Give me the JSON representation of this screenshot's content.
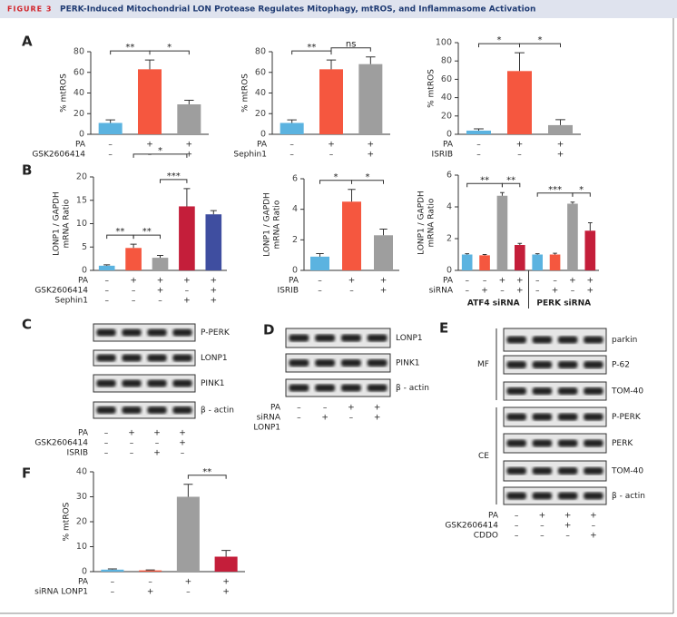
{
  "header": {
    "label": "FIGURE 3",
    "title": "PERK-Induced Mitochondrial LON Protease Regulates Mitophagy, mtROS, and Inflammasome Activation"
  },
  "panel_labels": [
    "A",
    "B",
    "C",
    "D",
    "E",
    "F"
  ],
  "chart_data": [
    {
      "type": "bar",
      "y_label": [
        "% mtROS"
      ],
      "values": [
        11,
        63,
        29
      ],
      "errors": [
        3,
        9,
        4
      ],
      "colors": [
        "#5bb3e0",
        "#f5573f",
        "#9e9e9e"
      ],
      "ylim": [
        0,
        80
      ],
      "yticks": [
        0,
        20,
        40,
        60,
        80
      ],
      "conditions": [
        {
          "label": "PA",
          "signs": [
            "–",
            "+",
            "+"
          ]
        },
        {
          "label": "GSK2606414",
          "signs": [
            "–",
            "–",
            "+"
          ]
        }
      ],
      "brackets": [
        {
          "label": "**",
          "pair": [
            0,
            1
          ]
        },
        {
          "label": "*",
          "pair": [
            1,
            2
          ]
        }
      ]
    },
    {
      "type": "bar",
      "y_label": [
        "% mtROS"
      ],
      "values": [
        11,
        63,
        68
      ],
      "errors": [
        3,
        9,
        7
      ],
      "colors": [
        "#5bb3e0",
        "#f5573f",
        "#9e9e9e"
      ],
      "ylim": [
        0,
        80
      ],
      "yticks": [
        0,
        20,
        40,
        60,
        80
      ],
      "conditions": [
        {
          "label": "PA",
          "signs": [
            "–",
            "+",
            "+"
          ]
        },
        {
          "label": "Sephin1",
          "signs": [
            "–",
            "–",
            "+"
          ]
        }
      ],
      "brackets": [
        {
          "label": "**",
          "pair": [
            0,
            1
          ]
        },
        {
          "label": "ns",
          "pair": [
            1,
            2
          ]
        }
      ]
    },
    {
      "type": "bar",
      "y_label": [
        "% mtROS"
      ],
      "values": [
        4,
        69,
        10
      ],
      "errors": [
        2,
        20,
        6
      ],
      "colors": [
        "#5bb3e0",
        "#f5573f",
        "#9e9e9e"
      ],
      "ylim": [
        0,
        100
      ],
      "yticks": [
        0,
        20,
        40,
        60,
        80,
        100
      ],
      "conditions": [
        {
          "label": "PA",
          "signs": [
            "–",
            "+",
            "+"
          ]
        },
        {
          "label": "ISRIB",
          "signs": [
            "–",
            "–",
            "+"
          ]
        }
      ],
      "brackets": [
        {
          "label": "*",
          "pair": [
            0,
            1
          ]
        },
        {
          "label": "*",
          "pair": [
            1,
            2
          ]
        }
      ]
    },
    {
      "type": "bar",
      "y_label": [
        "LONP1 / GAPDH",
        "mRNA Ratio"
      ],
      "values": [
        1,
        4.8,
        2.7,
        13.7,
        12
      ],
      "errors": [
        0.2,
        0.8,
        0.5,
        3.8,
        0.8
      ],
      "colors": [
        "#5bb3e0",
        "#f5573f",
        "#9e9e9e",
        "#c41e3a",
        "#3f4ea0"
      ],
      "ylim": [
        0,
        20
      ],
      "yticks": [
        0,
        5,
        10,
        15,
        20
      ],
      "conditions": [
        {
          "label": "PA",
          "signs": [
            "–",
            "+",
            "+",
            "+",
            "+"
          ]
        },
        {
          "label": "GSK2606414",
          "signs": [
            "–",
            "–",
            "+",
            "–",
            "+"
          ]
        },
        {
          "label": "Sephin1",
          "signs": [
            "–",
            "–",
            "–",
            "+",
            "+"
          ]
        }
      ],
      "brackets": [
        {
          "label": "**",
          "pair": [
            0,
            1
          ]
        },
        {
          "label": "**",
          "pair": [
            1,
            2
          ]
        },
        {
          "label": "***",
          "pair": [
            2,
            3
          ]
        },
        {
          "label": "*",
          "pair": [
            1,
            3
          ]
        }
      ]
    },
    {
      "type": "bar",
      "y_label": [
        "LONP1 / GAPDH",
        "mRNA Ratio"
      ],
      "values": [
        0.9,
        4.5,
        2.3
      ],
      "errors": [
        0.2,
        0.8,
        0.4
      ],
      "colors": [
        "#5bb3e0",
        "#f5573f",
        "#9e9e9e"
      ],
      "ylim": [
        0,
        6
      ],
      "yticks": [
        0,
        2,
        4,
        6
      ],
      "conditions": [
        {
          "label": "PA",
          "signs": [
            "–",
            "+",
            "+"
          ]
        },
        {
          "label": "ISRIB",
          "signs": [
            "–",
            "–",
            "+"
          ]
        }
      ],
      "brackets": [
        {
          "label": "*",
          "pair": [
            0,
            1
          ]
        },
        {
          "label": "*",
          "pair": [
            1,
            2
          ]
        }
      ]
    },
    {
      "type": "bar",
      "y_label": [
        "LONP1 / GAPDH",
        "mRNA Ratio"
      ],
      "values": [
        1,
        0.95,
        4.7,
        1.6,
        1,
        1,
        4.2,
        2.5
      ],
      "errors": [
        0.05,
        0.05,
        0.2,
        0.1,
        0.05,
        0.08,
        0.1,
        0.5
      ],
      "colors": [
        "#5bb3e0",
        "#f5573f",
        "#9e9e9e",
        "#c41e3a",
        "#5bb3e0",
        "#f5573f",
        "#9e9e9e",
        "#c41e3a"
      ],
      "ylim": [
        0,
        6
      ],
      "yticks": [
        0,
        2,
        4,
        6
      ],
      "conditions": [
        {
          "label": "PA",
          "signs": [
            "–",
            "–",
            "+",
            "+",
            "–",
            "–",
            "+",
            "+"
          ]
        },
        {
          "label": "siRNA",
          "signs": [
            "–",
            "+",
            "–",
            "+",
            "–",
            "+",
            "–",
            "+"
          ]
        }
      ],
      "groups": [
        {
          "label": "ATF4 siRNA",
          "pair": [
            0,
            3
          ]
        },
        {
          "label": "PERK siRNA",
          "pair": [
            4,
            7
          ]
        }
      ],
      "brackets": [
        {
          "label": "**",
          "pair": [
            0,
            2
          ]
        },
        {
          "label": "**",
          "pair": [
            2,
            3
          ]
        },
        {
          "label": "***",
          "pair": [
            4,
            6
          ]
        },
        {
          "label": "*",
          "pair": [
            6,
            7
          ]
        }
      ]
    },
    {
      "type": "bar",
      "y_label": [
        "% mtROS"
      ],
      "values": [
        0.8,
        0.5,
        30,
        6
      ],
      "errors": [
        0.3,
        0.2,
        5,
        2.5
      ],
      "colors": [
        "#5bb3e0",
        "#f5573f",
        "#9e9e9e",
        "#c41e3a"
      ],
      "ylim": [
        0,
        40
      ],
      "yticks": [
        0,
        10,
        20,
        30,
        40
      ],
      "conditions": [
        {
          "label": "PA",
          "signs": [
            "–",
            "–",
            "+",
            "+"
          ]
        },
        {
          "label": "siRNA LONP1",
          "signs": [
            "–",
            "+",
            "–",
            "+"
          ]
        }
      ],
      "brackets": [
        {
          "label": "**",
          "pair": [
            2,
            3
          ]
        }
      ]
    }
  ],
  "blots": [
    {
      "sections": [
        {
          "rows": [
            "P-PERK",
            "LONP1",
            "PINK1",
            "β - actin"
          ]
        }
      ],
      "conditions": [
        {
          "label": "PA",
          "signs": [
            "–",
            "+",
            "+",
            "+"
          ]
        },
        {
          "label": "GSK2606414",
          "signs": [
            "–",
            "–",
            "–",
            "+"
          ]
        },
        {
          "label": "ISRIB",
          "signs": [
            "–",
            "–",
            "+",
            "–"
          ]
        }
      ]
    },
    {
      "sections": [
        {
          "rows": [
            "LONP1",
            "PINK1",
            "β - actin"
          ]
        }
      ],
      "conditions": [
        {
          "label": "PA",
          "signs": [
            "–",
            "–",
            "+",
            "+"
          ]
        },
        {
          "label": "siRNA",
          "signs": [
            "–",
            "+",
            "–",
            "+"
          ]
        },
        {
          "label": "LONP1",
          "signs": []
        }
      ]
    },
    {
      "sections": [
        {
          "label": "MF",
          "rows": [
            "parkin",
            "P-62",
            "TOM-40"
          ]
        },
        {
          "label": "CE",
          "rows": [
            "P-PERK",
            "PERK",
            "TOM-40",
            "β - actin"
          ]
        }
      ],
      "conditions": [
        {
          "label": "PA",
          "signs": [
            "–",
            "+",
            "+",
            "+"
          ]
        },
        {
          "label": "GSK2606414",
          "signs": [
            "–",
            "–",
            "+",
            "–"
          ]
        },
        {
          "label": "CDDO",
          "signs": [
            "–",
            "–",
            "–",
            "+"
          ]
        }
      ]
    }
  ]
}
